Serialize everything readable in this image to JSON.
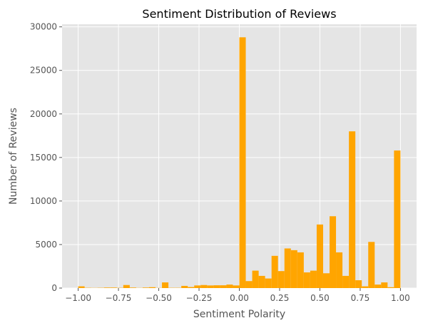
{
  "chart_data": {
    "type": "bar",
    "title": "Sentiment Distribution of Reviews",
    "xlabel": "Sentiment Polarity",
    "ylabel": "Number of Reviews",
    "xlim": [
      -1.1,
      1.1
    ],
    "ylim": [
      0,
      30300
    ],
    "x_ticks": [
      -1.0,
      -0.75,
      -0.5,
      -0.25,
      0.0,
      0.25,
      0.5,
      0.75,
      1.0
    ],
    "x_tick_labels": [
      "−1.00",
      "−0.75",
      "−0.50",
      "−0.25",
      "0.00",
      "0.25",
      "0.50",
      "0.75",
      "1.00"
    ],
    "y_ticks": [
      0,
      5000,
      10000,
      15000,
      20000,
      25000,
      30000
    ],
    "y_tick_labels": [
      "0",
      "5000",
      "10000",
      "15000",
      "20000",
      "25000",
      "30000"
    ],
    "grid": true,
    "bar_color": "#FFA500",
    "background_color": "#E5E5E5",
    "grid_color": "#FFFFFF",
    "bin_width": 0.04,
    "bin_starts": [
      -1.0,
      -0.96,
      -0.92,
      -0.88,
      -0.84,
      -0.8,
      -0.76,
      -0.72,
      -0.68,
      -0.64,
      -0.6,
      -0.56,
      -0.52,
      -0.48,
      -0.44,
      -0.4,
      -0.36,
      -0.32,
      -0.28,
      -0.24,
      -0.2,
      -0.16,
      -0.12,
      -0.08,
      -0.04,
      0.0,
      0.04,
      0.08,
      0.12,
      0.16,
      0.2,
      0.24,
      0.28,
      0.32,
      0.36,
      0.4,
      0.44,
      0.48,
      0.52,
      0.56,
      0.6,
      0.64,
      0.68,
      0.72,
      0.76,
      0.8,
      0.84,
      0.88,
      0.92,
      0.96
    ],
    "values": [
      200,
      30,
      20,
      30,
      60,
      60,
      30,
      350,
      60,
      20,
      60,
      100,
      20,
      650,
      30,
      30,
      250,
      120,
      300,
      350,
      300,
      320,
      320,
      400,
      300,
      28800,
      800,
      2000,
      1400,
      1100,
      3700,
      1950,
      4550,
      4350,
      4100,
      1800,
      2000,
      7300,
      1700,
      8250,
      4100,
      1400,
      18000,
      900,
      200,
      5300,
      400,
      650,
      100,
      15800
    ]
  }
}
